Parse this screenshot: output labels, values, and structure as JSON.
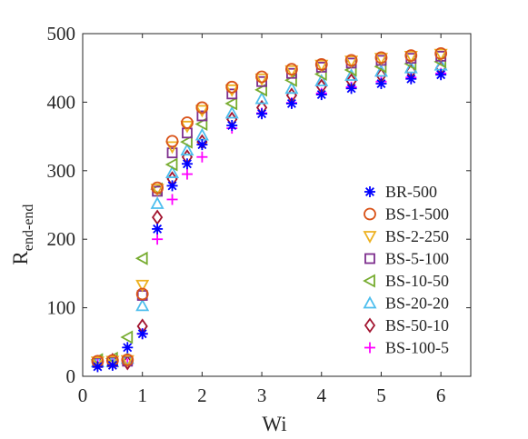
{
  "chart_data": {
    "type": "scatter",
    "title": "",
    "xlabel": "Wi",
    "ylabel_main": "R",
    "ylabel_sub": "end-end",
    "xlim": [
      0,
      6.5
    ],
    "ylim": [
      0,
      500
    ],
    "xticks": [
      0,
      1,
      2,
      3,
      4,
      5,
      6
    ],
    "yticks": [
      0,
      100,
      200,
      300,
      400,
      500
    ],
    "grid": false,
    "legend_position": "right",
    "x": [
      0.25,
      0.5,
      0.75,
      1.0,
      1.25,
      1.5,
      1.75,
      2.0,
      2.5,
      3.0,
      3.5,
      4.0,
      4.5,
      5.0,
      5.5,
      6.0
    ],
    "series": [
      {
        "name": "BR-500",
        "marker": "asterisk",
        "color": "#0000ff",
        "values": [
          14,
          16,
          42,
          62,
          215,
          278,
          310,
          338,
          366,
          383,
          398,
          411,
          420,
          427,
          434,
          440
        ]
      },
      {
        "name": "BS-1-500",
        "marker": "circle",
        "color": "#d95319",
        "values": [
          22,
          23,
          24,
          120,
          275,
          343,
          370,
          392,
          422,
          437,
          448,
          455,
          461,
          465,
          468,
          471
        ]
      },
      {
        "name": "BS-2-250",
        "marker": "triangle-down",
        "color": "#edb120",
        "values": [
          21,
          22,
          23,
          133,
          273,
          335,
          365,
          388,
          418,
          434,
          446,
          454,
          460,
          464,
          467,
          470
        ]
      },
      {
        "name": "BS-5-100",
        "marker": "square",
        "color": "#7e2f8e",
        "values": [
          20,
          21,
          22,
          118,
          270,
          326,
          355,
          380,
          412,
          430,
          442,
          451,
          457,
          461,
          464,
          467
        ]
      },
      {
        "name": "BS-10-50",
        "marker": "triangle-left",
        "color": "#77ac30",
        "values": [
          24,
          26,
          57,
          172,
          273,
          309,
          342,
          368,
          398,
          418,
          432,
          441,
          447,
          452,
          456,
          459
        ]
      },
      {
        "name": "BS-20-20",
        "marker": "triangle-up",
        "color": "#4dbeee",
        "values": [
          21,
          21,
          26,
          103,
          252,
          297,
          330,
          352,
          384,
          405,
          420,
          431,
          439,
          445,
          450,
          454
        ]
      },
      {
        "name": "BS-50-10",
        "marker": "diamond",
        "color": "#a2142f",
        "values": [
          20,
          23,
          20,
          73,
          232,
          288,
          320,
          342,
          375,
          392,
          410,
          423,
          431,
          439,
          445,
          450
        ]
      },
      {
        "name": "BS-100-5",
        "marker": "plus",
        "color": "#ff00ff",
        "values": [
          20,
          19,
          18,
          62,
          200,
          258,
          295,
          320,
          362,
          384,
          399,
          413,
          422,
          430,
          436,
          442
        ]
      }
    ]
  }
}
